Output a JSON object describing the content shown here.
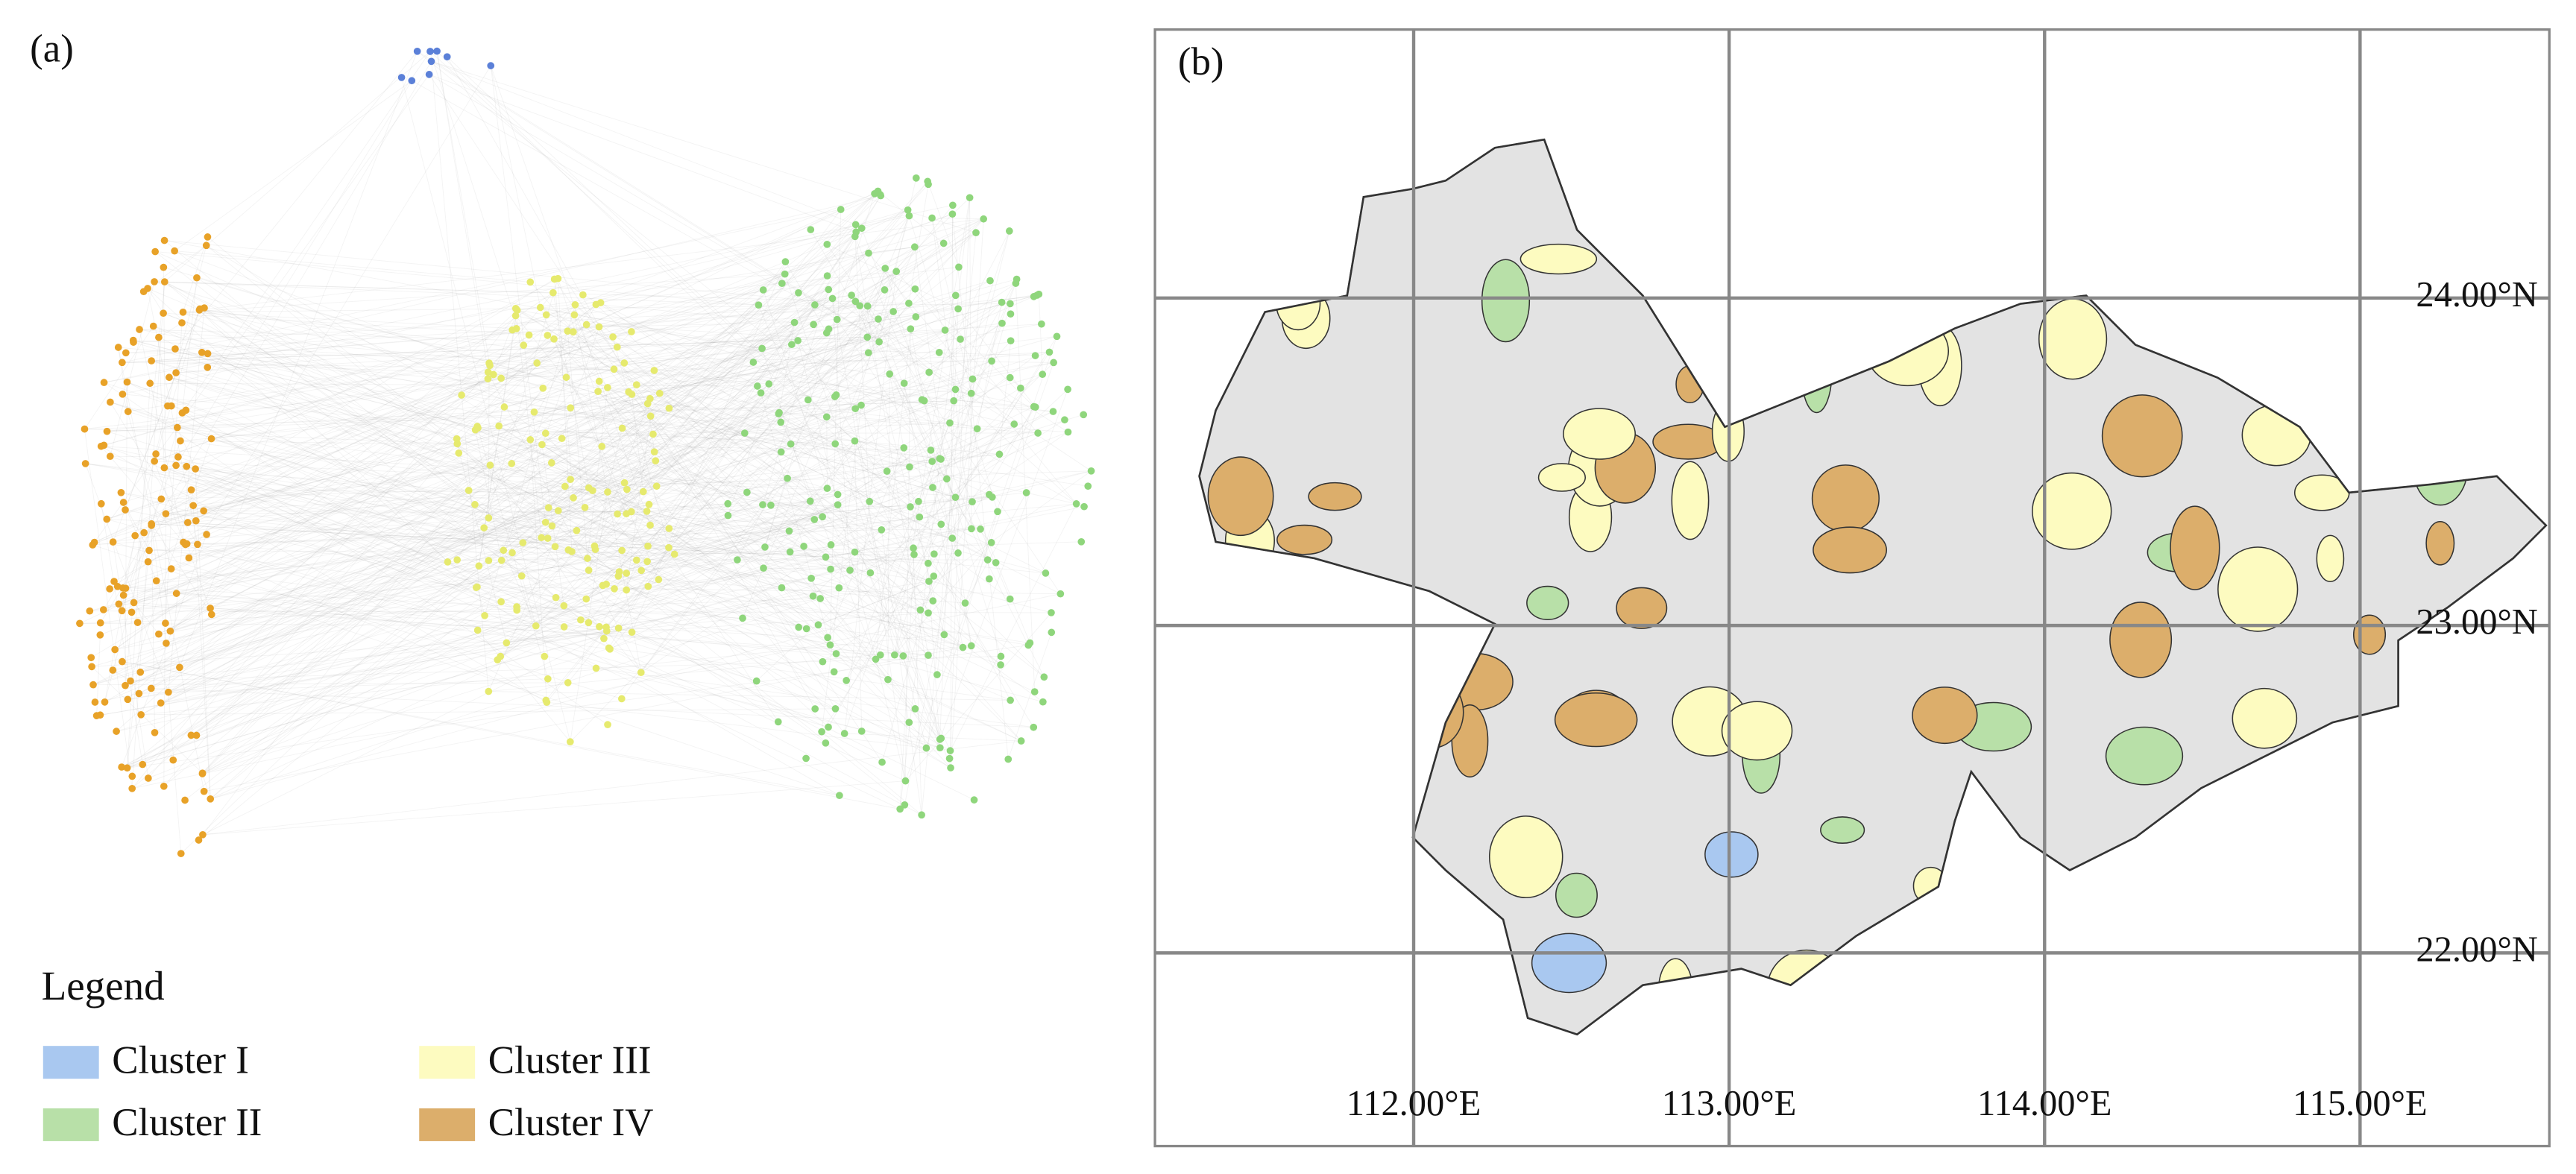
{
  "panels": {
    "a": {
      "label": "(a)"
    },
    "b": {
      "label": "(b)"
    }
  },
  "legend": {
    "title": "Legend",
    "items": [
      {
        "name": "Cluster I",
        "color": "#a9c8f0"
      },
      {
        "name": "Cluster II",
        "color": "#b8e0a8"
      },
      {
        "name": "Cluster III",
        "color": "#fdfbc0"
      },
      {
        "name": "Cluster IV",
        "color": "#dcae6b"
      }
    ]
  },
  "network": {
    "node_colors": [
      "#5b80d8",
      "#8fd67c",
      "#e6ea6e",
      "#e8a228"
    ]
  },
  "map": {
    "xlim": [
      111.18,
      115.6
    ],
    "ylim": [
      21.41,
      24.82
    ],
    "xticks": [
      {
        "value": 112,
        "label": "112.00°E"
      },
      {
        "value": 113,
        "label": "113.00°E"
      },
      {
        "value": 114,
        "label": "114.00°E"
      },
      {
        "value": 115,
        "label": "115.00°E"
      }
    ],
    "yticks": [
      {
        "value": 22,
        "label": "22.00°N"
      },
      {
        "value": 23,
        "label": "23.00°N"
      },
      {
        "value": 24,
        "label": "24.00°N"
      }
    ]
  }
}
